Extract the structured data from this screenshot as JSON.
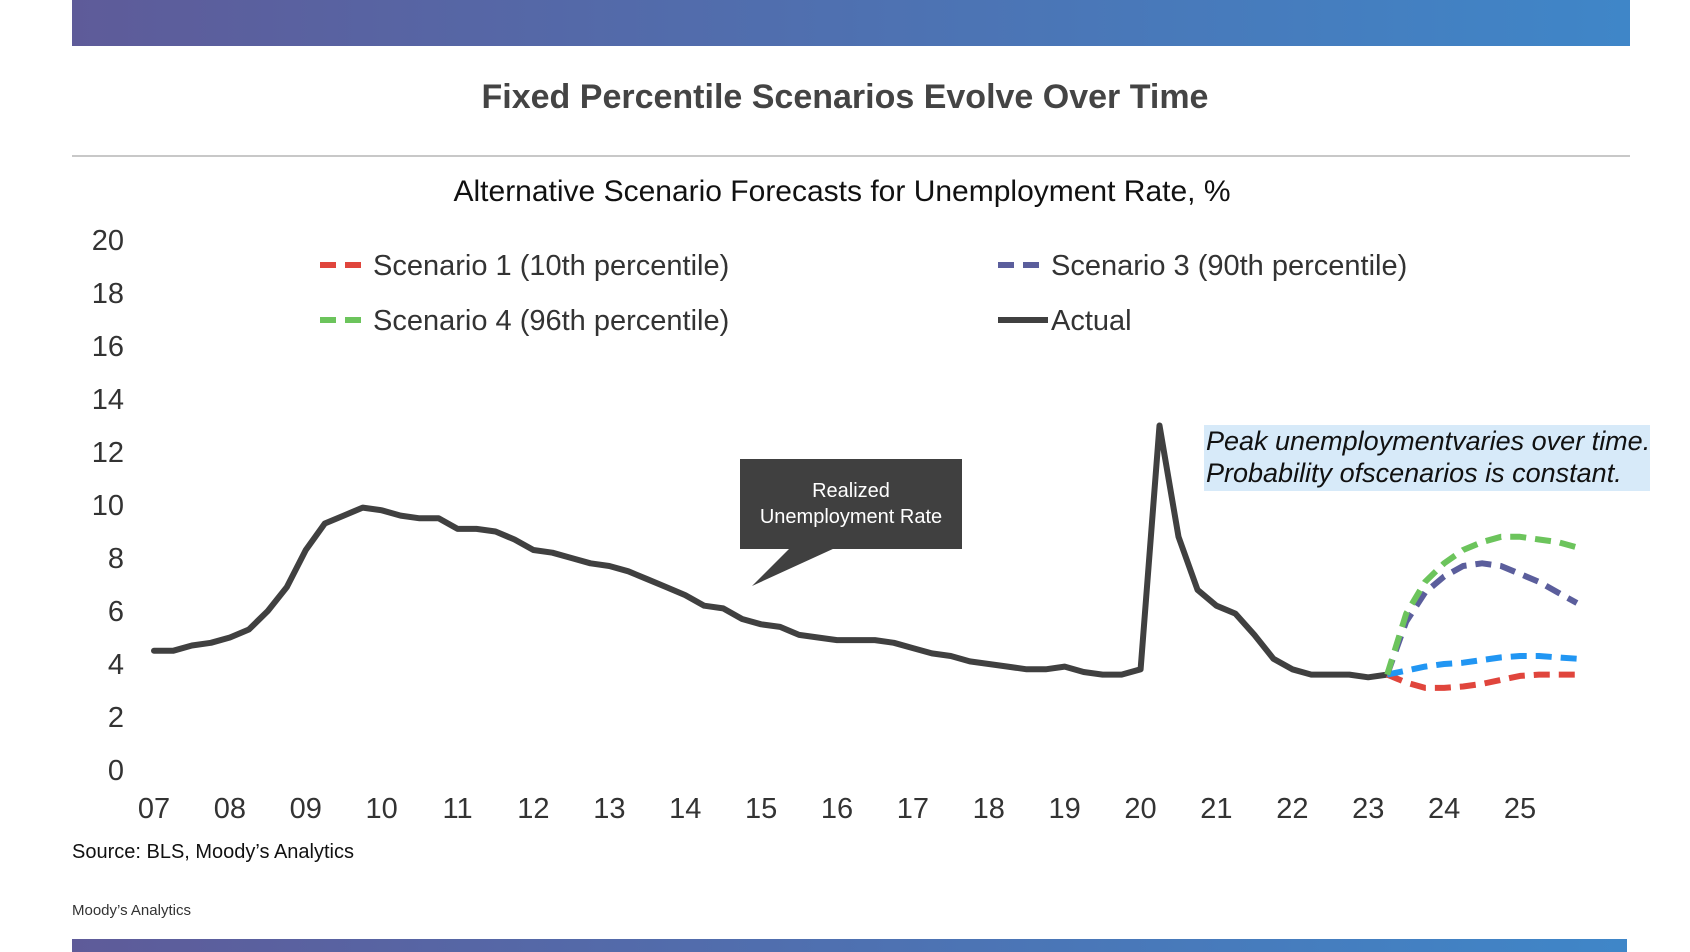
{
  "header": {
    "title": "Fixed Percentile Scenarios Evolve Over Time"
  },
  "footer": {
    "source": "Source: BLS, Moody’s Analytics",
    "brand": "Moody’s Analytics"
  },
  "annotations": {
    "peak_note_line1": "Peak unemploymentvaries over time.",
    "peak_note_line2": "Probability ofscenarios is constant.",
    "callout_line1": "Realized",
    "callout_line2": "Unemployment Rate"
  },
  "colors": {
    "scenario1": "#e0453c",
    "scenario2": "#2196f3",
    "scenario3": "#5b5e9c",
    "scenario4": "#6cc45c",
    "actual": "#404040",
    "band_start": "#5e5b99",
    "band_end": "#3f86c8"
  },
  "chart_data": {
    "type": "line",
    "title": "Alternative Scenario Forecasts for Unemployment Rate, %",
    "xlabel": "",
    "ylabel": "",
    "ylim": [
      0,
      20
    ],
    "yticks": [
      "0",
      "2",
      "4",
      "6",
      "8",
      "10",
      "12",
      "14",
      "16",
      "18",
      "20"
    ],
    "xticks": [
      "07",
      "08",
      "09",
      "10",
      "11",
      "12",
      "13",
      "14",
      "15",
      "16",
      "17",
      "18",
      "19",
      "20",
      "21",
      "22",
      "23",
      "24",
      "25"
    ],
    "grid": false,
    "legend_position": "top",
    "series": [
      {
        "name": "Actual",
        "style": "solid",
        "x": [
          2007.0,
          2007.25,
          2007.5,
          2007.75,
          2008.0,
          2008.25,
          2008.5,
          2008.75,
          2009.0,
          2009.25,
          2009.5,
          2009.75,
          2010.0,
          2010.25,
          2010.5,
          2010.75,
          2011.0,
          2011.25,
          2011.5,
          2011.75,
          2012.0,
          2012.25,
          2012.5,
          2012.75,
          2013.0,
          2013.25,
          2013.5,
          2013.75,
          2014.0,
          2014.25,
          2014.5,
          2014.75,
          2015.0,
          2015.25,
          2015.5,
          2015.75,
          2016.0,
          2016.25,
          2016.5,
          2016.75,
          2017.0,
          2017.25,
          2017.5,
          2017.75,
          2018.0,
          2018.25,
          2018.5,
          2018.75,
          2019.0,
          2019.25,
          2019.5,
          2019.75,
          2020.0,
          2020.25,
          2020.5,
          2020.75,
          2021.0,
          2021.25,
          2021.5,
          2021.75,
          2022.0,
          2022.25,
          2022.5,
          2022.75,
          2023.0,
          2023.25
        ],
        "values": [
          4.5,
          4.5,
          4.7,
          4.8,
          5.0,
          5.3,
          6.0,
          6.9,
          8.3,
          9.3,
          9.6,
          9.9,
          9.8,
          9.6,
          9.5,
          9.5,
          9.1,
          9.1,
          9.0,
          8.7,
          8.3,
          8.2,
          8.0,
          7.8,
          7.7,
          7.5,
          7.2,
          6.9,
          6.6,
          6.2,
          6.1,
          5.7,
          5.5,
          5.4,
          5.1,
          5.0,
          4.9,
          4.9,
          4.9,
          4.8,
          4.6,
          4.4,
          4.3,
          4.1,
          4.0,
          3.9,
          3.8,
          3.8,
          3.9,
          3.7,
          3.6,
          3.6,
          3.8,
          13.0,
          8.8,
          6.8,
          6.2,
          5.9,
          5.1,
          4.2,
          3.8,
          3.6,
          3.6,
          3.6,
          3.5,
          3.6
        ]
      },
      {
        "name": "Scenario 1 (10th percentile)",
        "style": "dashed",
        "x": [
          2023.25,
          2023.5,
          2023.75,
          2024.0,
          2024.25,
          2024.5,
          2024.75,
          2025.0,
          2025.25,
          2025.5,
          2025.75
        ],
        "values": [
          3.6,
          3.3,
          3.1,
          3.1,
          3.15,
          3.25,
          3.4,
          3.55,
          3.6,
          3.6,
          3.6
        ]
      },
      {
        "name": "",
        "style": "dashed",
        "x": [
          2023.25,
          2023.5,
          2023.75,
          2024.0,
          2024.25,
          2024.5,
          2024.75,
          2025.0,
          2025.25,
          2025.5,
          2025.75
        ],
        "values": [
          3.6,
          3.75,
          3.9,
          4.0,
          4.05,
          4.15,
          4.25,
          4.3,
          4.3,
          4.25,
          4.2
        ]
      },
      {
        "name": "Scenario 3 (90th percentile)",
        "style": "dashed",
        "x": [
          2023.25,
          2023.5,
          2023.75,
          2024.0,
          2024.25,
          2024.5,
          2024.75,
          2025.0,
          2025.25,
          2025.5,
          2025.75
        ],
        "values": [
          3.6,
          5.6,
          6.7,
          7.3,
          7.7,
          7.8,
          7.7,
          7.4,
          7.1,
          6.7,
          6.3
        ]
      },
      {
        "name": "Scenario 4 (96th percentile)",
        "style": "dashed",
        "x": [
          2023.25,
          2023.5,
          2023.75,
          2024.0,
          2024.25,
          2024.5,
          2024.75,
          2025.0,
          2025.25,
          2025.5,
          2025.75
        ],
        "values": [
          3.6,
          5.9,
          7.1,
          7.8,
          8.3,
          8.6,
          8.8,
          8.8,
          8.7,
          8.6,
          8.4
        ]
      }
    ]
  }
}
